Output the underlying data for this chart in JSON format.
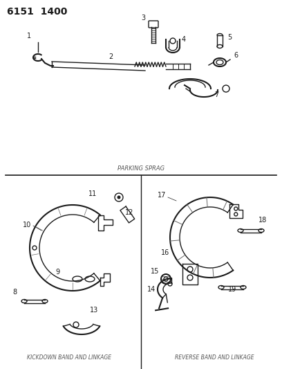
{
  "title_code": "6151  1400",
  "bg_color": "#ffffff",
  "line_color": "#1a1a1a",
  "parking_sprag_label": "PARKING SPRAG",
  "kickdown_label": "KICKDOWN BAND AND LINKAGE",
  "reverse_label": "REVERSE BAND AND LINKAGE"
}
